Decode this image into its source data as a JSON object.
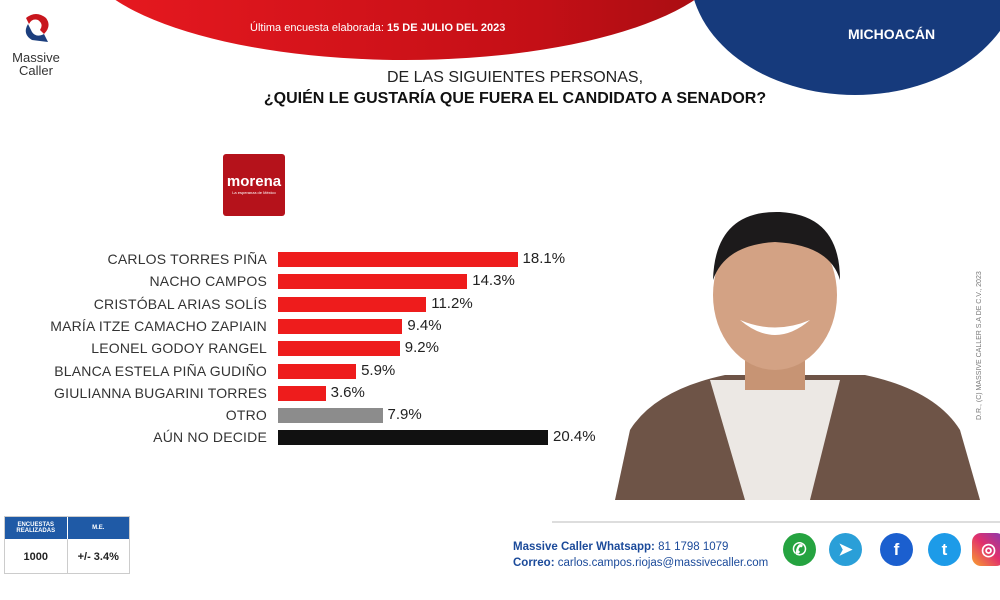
{
  "header": {
    "date_label": "Última encuesta elaborada:",
    "date": "15 DE JULIO DEL 2023",
    "region": "MICHOACÁN",
    "logo": "Massive Caller"
  },
  "question": {
    "line1": "DE LAS SIGUIENTES  PERSONAS,",
    "line2": "¿QUIÉN LE GUSTARÍA QUE FUERA EL CANDIDATO  A SENADOR?"
  },
  "party": {
    "name": "morena",
    "tagline": "La esperanza de México"
  },
  "chart_data": {
    "type": "bar",
    "orientation": "horizontal",
    "title": "¿QUIÉN LE GUSTARÍA QUE FUERA EL CANDIDATO A SENADOR?",
    "categories": [
      "CARLOS TORRES PIÑA",
      "NACHO CAMPOS",
      "CRISTÓBAL ARIAS SOLÍS",
      "MARÍA ITZE CAMACHO ZAPIAIN",
      "LEONEL GODOY RANGEL",
      "BLANCA ESTELA PIÑA GUDIÑO",
      "GIULIANNA BUGARINI TORRES",
      "OTRO",
      "AÚN NO DECIDE"
    ],
    "values": [
      18.1,
      14.3,
      11.2,
      9.4,
      9.2,
      5.9,
      3.6,
      7.9,
      20.4
    ],
    "labels": [
      "18.1%",
      "14.3%",
      "11.2%",
      "9.4%",
      "9.2%",
      "5.9%",
      "3.6%",
      "7.9%",
      "20.4%"
    ],
    "colors": [
      "#ee1c1c",
      "#ee1c1c",
      "#ee1c1c",
      "#ee1c1c",
      "#ee1c1c",
      "#ee1c1c",
      "#ee1c1c",
      "#8c8c8c",
      "#111111"
    ],
    "xlabel": "",
    "ylabel": "",
    "xlim": [
      0,
      20.4
    ],
    "grid": false
  },
  "copyright": "D.R., (C) MASSIVE CALLER S.A DE C.V., 2023",
  "stats": {
    "h1": "ENCUESTAS REALIZADAS",
    "h2": "M.E.",
    "v1": "1000",
    "v2": "+/- 3.4%"
  },
  "contact": {
    "wa_label": "Massive Caller Whatsapp:",
    "wa": "81 1798 1079",
    "mail_label": "Correo:",
    "mail": "carlos.campos.riojas@massivecaller.com"
  },
  "social": [
    "whatsapp",
    "telegram",
    "facebook",
    "twitter",
    "instagram"
  ]
}
